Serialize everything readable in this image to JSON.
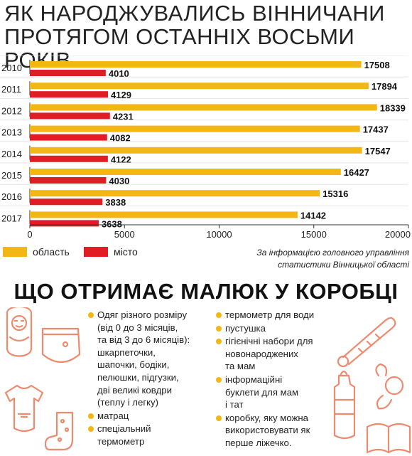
{
  "title": "ЯК НАРОДЖУВАЛИСЬ ВІННИЧАНИ ПРОТЯГОМ ОСТАННІХ ВОСЬМИ РОКІВ",
  "colors": {
    "region": "#f2b714",
    "city": "#e01c24",
    "accent": "#f2b714",
    "deco": "#ee8a6e"
  },
  "chart_data": {
    "type": "bar",
    "orientation": "horizontal",
    "categories": [
      "2010",
      "2011",
      "2012",
      "2013",
      "2014",
      "2015",
      "2016",
      "2017"
    ],
    "series": [
      {
        "name": "область",
        "values": [
          17508,
          17894,
          18339,
          17437,
          17547,
          16427,
          15316,
          14142
        ]
      },
      {
        "name": "місто",
        "values": [
          4010,
          4129,
          4231,
          4082,
          4122,
          4030,
          3838,
          3638
        ]
      }
    ],
    "x_ticks": [
      "0",
      "5000",
      "10000",
      "15000",
      "20000"
    ],
    "xlim": [
      0,
      20000
    ],
    "grid": false,
    "legend_position": "bottom-left"
  },
  "legend": {
    "region": "область",
    "city": "місто"
  },
  "source": "За інформацією головного управління статистики Вінницької області",
  "box": {
    "title": "ЩО ОТРИМАЄ МАЛЮК У КОРОБЦІ",
    "left_items": [
      "Одяг різного розміру\n(від 0 до 3 місяців,\nта від 3 до 6 місяців):\nшкарпеточки,\nшапочки, бодіки,\nпелюшки, підгузки,\nдві великі ковдри\n(теплу і легку)",
      "матрац",
      "спеціальний\nтермометр"
    ],
    "right_items": [
      "термометр для води",
      "пустушка",
      "гігієнічні набори для\nновонароджених\nта мам",
      "інформаційні\nбуклети для мам\nі тат",
      "коробку, яку можна\nвикористовувати як\nперше ліжечко."
    ]
  }
}
